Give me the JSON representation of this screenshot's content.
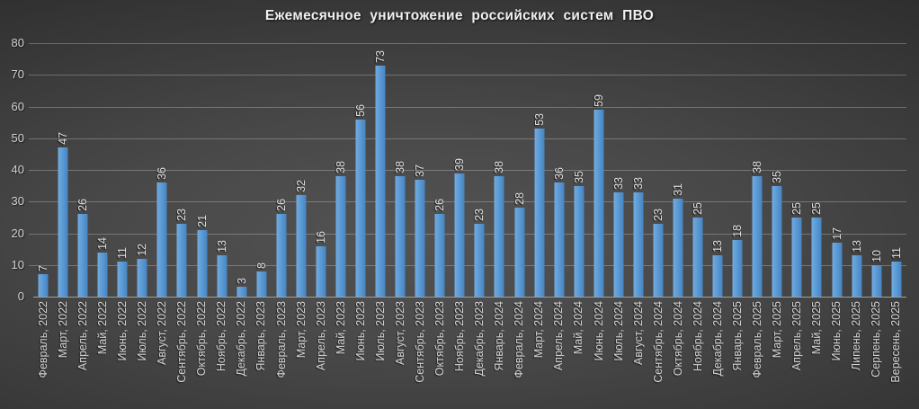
{
  "colors": {
    "bar_light": "#73abdf",
    "bar_main": "#5b9bd5",
    "bar_dark": "#4784c2",
    "axis_text": "#d2d2d2",
    "value_text": "#dedede",
    "gridline": "#757575",
    "axis_line": "#a0a0a0",
    "title_text": "#f0f0f0",
    "background_center": "#535353",
    "background_edge": "#1d1d1d"
  },
  "chart_data": {
    "type": "bar",
    "title": "Ежемесячное уничтожение российских систем ПВО",
    "xlabel": "",
    "ylabel": "",
    "ylim": [
      0,
      80
    ],
    "yticks": [
      0,
      10,
      20,
      30,
      40,
      50,
      60,
      70,
      80
    ],
    "grid": true,
    "legend": false,
    "value_labels": true,
    "label_rotation": 90,
    "categories": [
      "Февраль, 2022",
      "Март, 2022",
      "Апрель, 2022",
      "Май, 2022",
      "Июнь, 2022",
      "Июль, 2022",
      "Август, 2022",
      "Сентябрь, 2022",
      "Октябрь, 2022",
      "Ноябрь, 2022",
      "Декабрь, 2022",
      "Январь, 2023",
      "Февраль, 2023",
      "Март, 2023",
      "Апрель, 2023",
      "Май, 2023",
      "Июнь, 2023",
      "Июль, 2023",
      "Август, 2023",
      "Сентябрь, 2023",
      "Октябрь, 2023",
      "Ноябрь, 2023",
      "Декабрь, 2023",
      "Январь, 2024",
      "Февраль, 2024",
      "Март, 2024",
      "Апрель, 2024",
      "Май, 2024",
      "Июнь, 2024",
      "Июль, 2024",
      "Август, 2024",
      "Сентябрь, 2024",
      "Октябрь, 2024",
      "Ноябрь, 2024",
      "Декабрь, 2024",
      "Январь, 2025",
      "Февраль, 2025",
      "Март, 2025",
      "Апрель, 2025",
      "Май, 2025",
      "Июнь, 2025",
      "Липень, 2025",
      "Серпень, 2025",
      "Вересень, 2025"
    ],
    "values": [
      7,
      47,
      26,
      14,
      11,
      12,
      36,
      23,
      21,
      13,
      3,
      8,
      26,
      32,
      16,
      38,
      56,
      73,
      38,
      37,
      26,
      39,
      23,
      38,
      28,
      53,
      36,
      35,
      59,
      33,
      33,
      23,
      31,
      25,
      13,
      18,
      38,
      35,
      25,
      25,
      17,
      13,
      10,
      11
    ]
  }
}
